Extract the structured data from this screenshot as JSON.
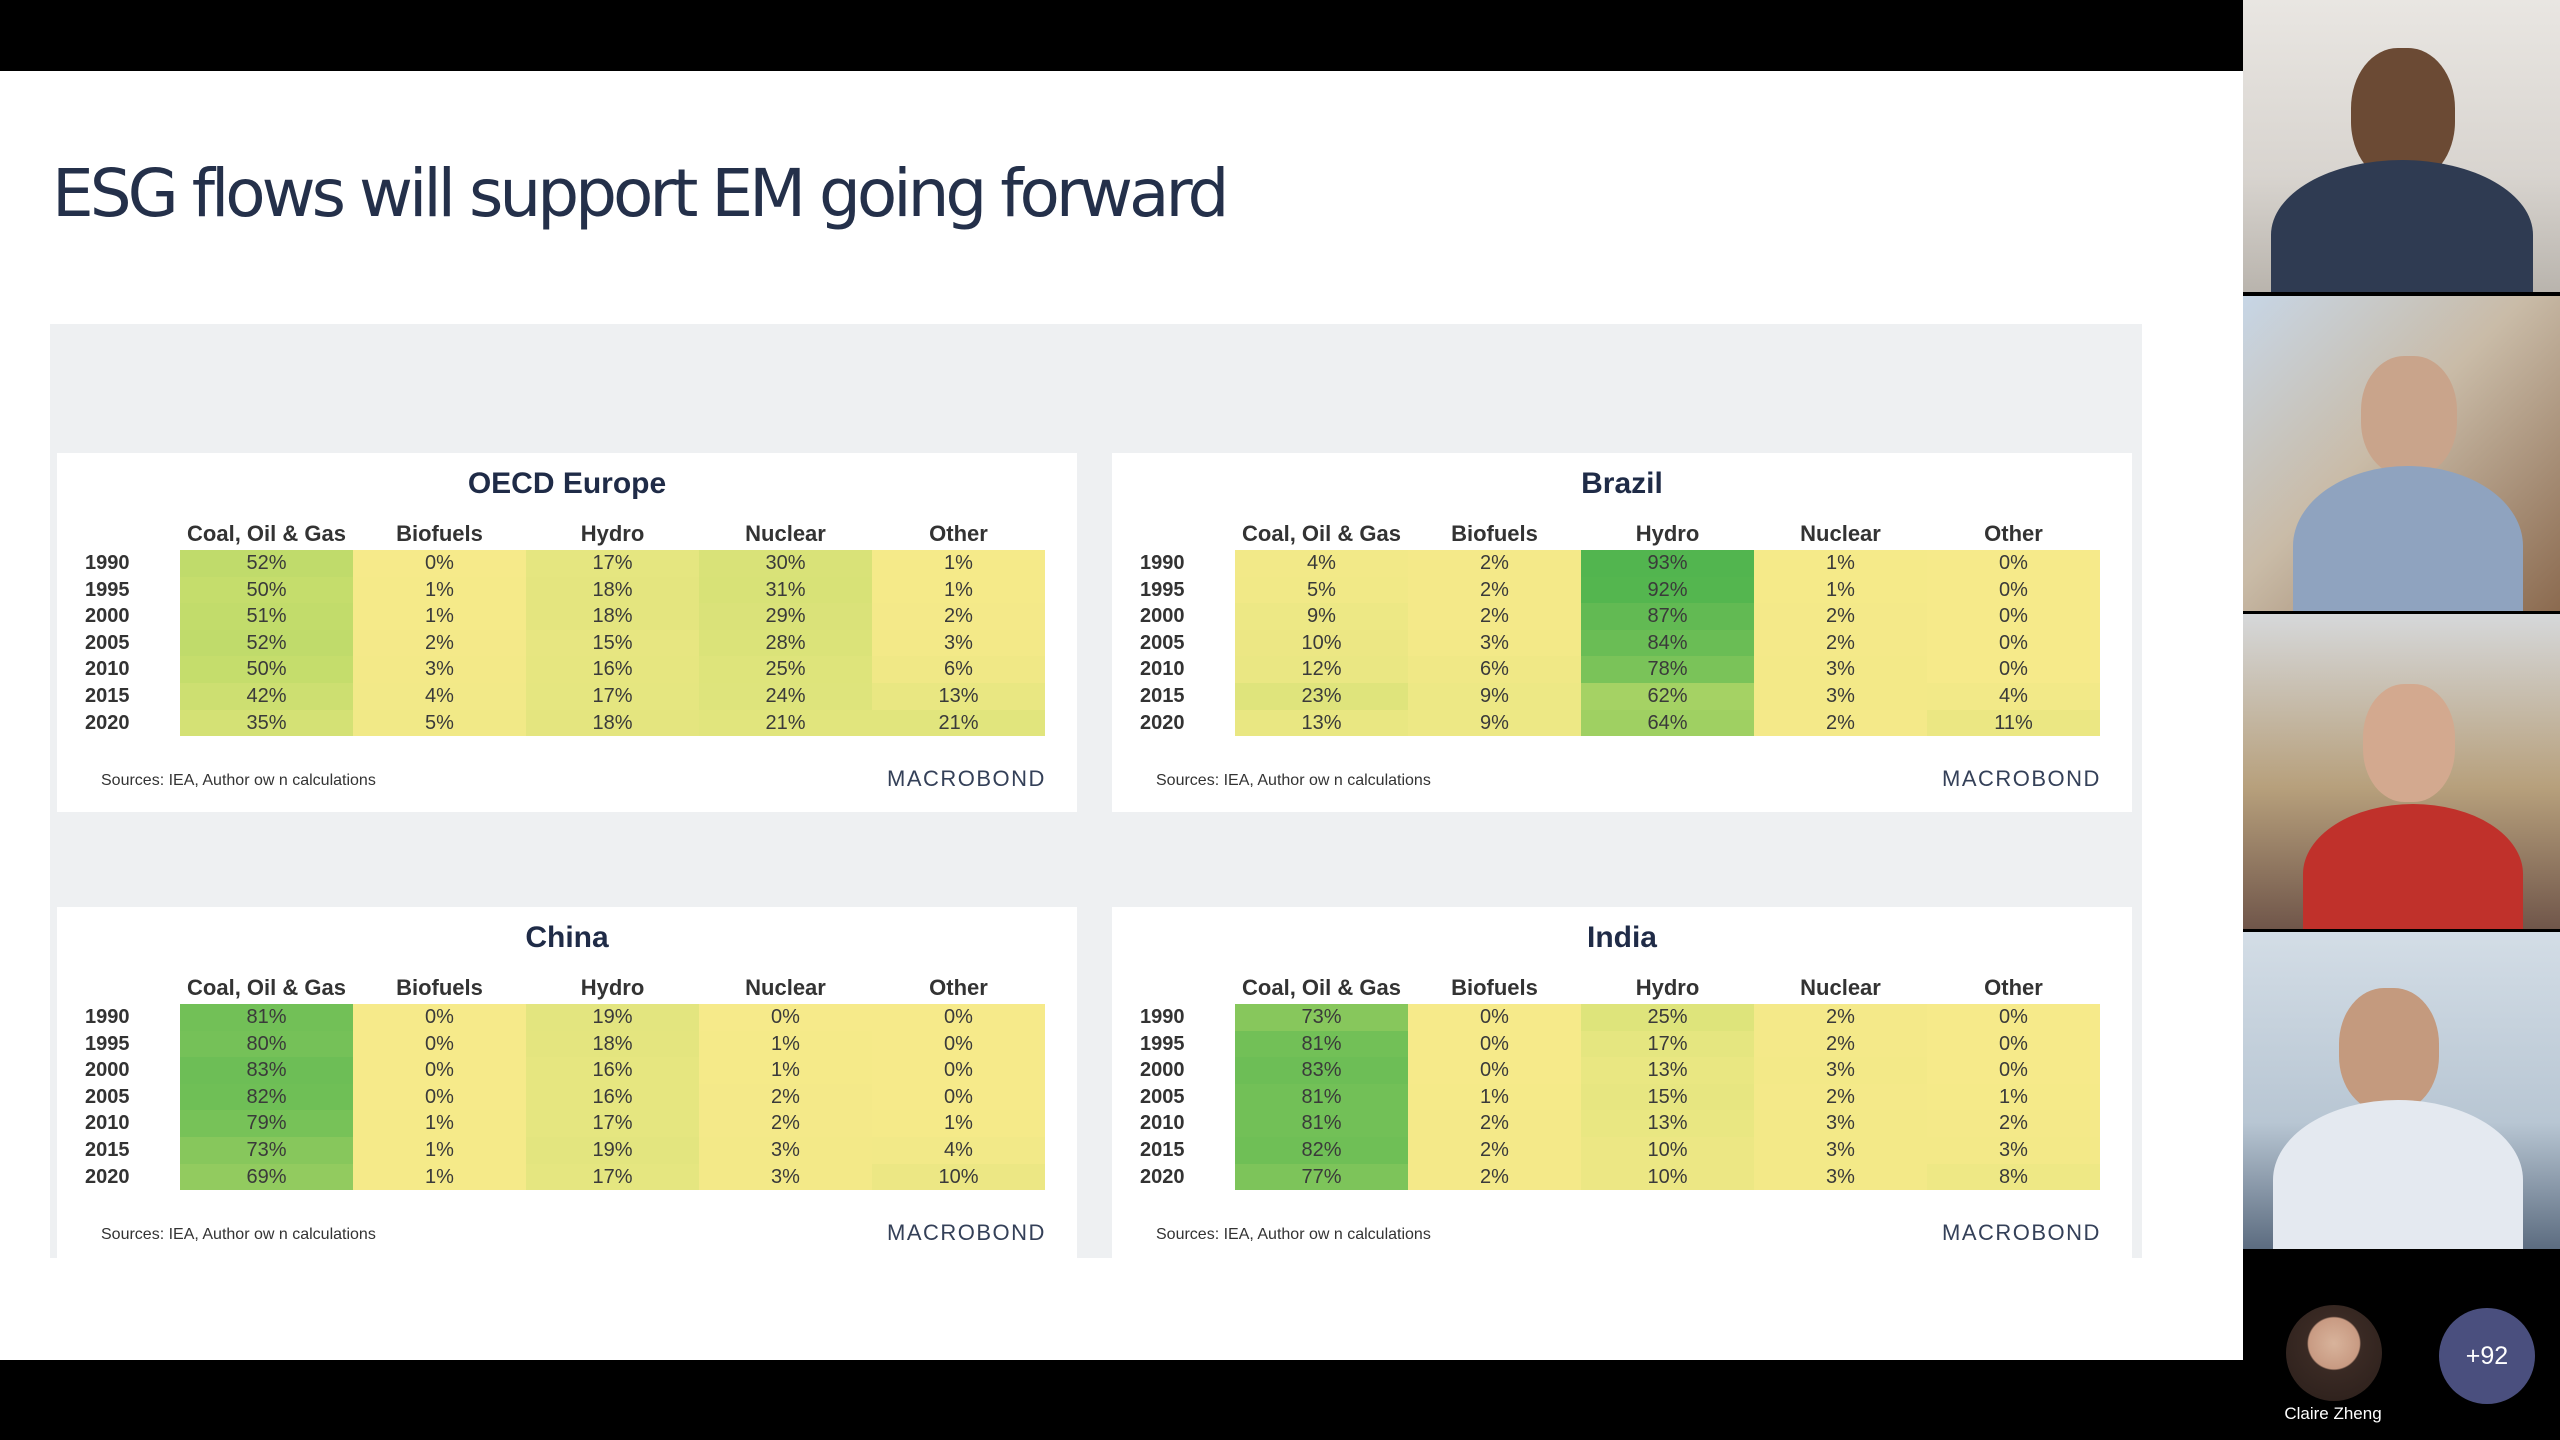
{
  "slide": {
    "title": "ESG flows will support EM going forward"
  },
  "columns": [
    "Coal, Oil & Gas",
    "Biofuels",
    "Hydro",
    "Nuclear",
    "Other"
  ],
  "tables": [
    {
      "title": "OECD Europe",
      "source": "Sources: IEA, Author ow n calculations",
      "brand": "MACROBOND",
      "rows": [
        {
          "year": "1990",
          "values": [
            "52%",
            "0%",
            "17%",
            "30%",
            "1%"
          ]
        },
        {
          "year": "1995",
          "values": [
            "50%",
            "1%",
            "18%",
            "31%",
            "1%"
          ]
        },
        {
          "year": "2000",
          "values": [
            "51%",
            "1%",
            "18%",
            "29%",
            "2%"
          ]
        },
        {
          "year": "2005",
          "values": [
            "52%",
            "2%",
            "15%",
            "28%",
            "3%"
          ]
        },
        {
          "year": "2010",
          "values": [
            "50%",
            "3%",
            "16%",
            "25%",
            "6%"
          ]
        },
        {
          "year": "2015",
          "values": [
            "42%",
            "4%",
            "17%",
            "24%",
            "13%"
          ]
        },
        {
          "year": "2020",
          "values": [
            "35%",
            "5%",
            "18%",
            "21%",
            "21%"
          ]
        }
      ]
    },
    {
      "title": "Brazil",
      "source": "Sources: IEA, Author ow n calculations",
      "brand": "MACROBOND",
      "rows": [
        {
          "year": "1990",
          "values": [
            "4%",
            "2%",
            "93%",
            "1%",
            "0%"
          ]
        },
        {
          "year": "1995",
          "values": [
            "5%",
            "2%",
            "92%",
            "1%",
            "0%"
          ]
        },
        {
          "year": "2000",
          "values": [
            "9%",
            "2%",
            "87%",
            "2%",
            "0%"
          ]
        },
        {
          "year": "2005",
          "values": [
            "10%",
            "3%",
            "84%",
            "2%",
            "0%"
          ]
        },
        {
          "year": "2010",
          "values": [
            "12%",
            "6%",
            "78%",
            "3%",
            "0%"
          ]
        },
        {
          "year": "2015",
          "values": [
            "23%",
            "9%",
            "62%",
            "3%",
            "4%"
          ]
        },
        {
          "year": "2020",
          "values": [
            "13%",
            "9%",
            "64%",
            "2%",
            "11%"
          ]
        }
      ]
    },
    {
      "title": "China",
      "source": "Sources: IEA, Author ow n calculations",
      "brand": "MACROBOND",
      "rows": [
        {
          "year": "1990",
          "values": [
            "81%",
            "0%",
            "19%",
            "0%",
            "0%"
          ]
        },
        {
          "year": "1995",
          "values": [
            "80%",
            "0%",
            "18%",
            "1%",
            "0%"
          ]
        },
        {
          "year": "2000",
          "values": [
            "83%",
            "0%",
            "16%",
            "1%",
            "0%"
          ]
        },
        {
          "year": "2005",
          "values": [
            "82%",
            "0%",
            "16%",
            "2%",
            "0%"
          ]
        },
        {
          "year": "2010",
          "values": [
            "79%",
            "1%",
            "17%",
            "2%",
            "1%"
          ]
        },
        {
          "year": "2015",
          "values": [
            "73%",
            "1%",
            "19%",
            "3%",
            "4%"
          ]
        },
        {
          "year": "2020",
          "values": [
            "69%",
            "1%",
            "17%",
            "3%",
            "10%"
          ]
        }
      ]
    },
    {
      "title": "India",
      "source": "Sources: IEA, Author ow n calculations",
      "brand": "MACROBOND",
      "rows": [
        {
          "year": "1990",
          "values": [
            "73%",
            "0%",
            "25%",
            "2%",
            "0%"
          ]
        },
        {
          "year": "1995",
          "values": [
            "81%",
            "0%",
            "17%",
            "2%",
            "0%"
          ]
        },
        {
          "year": "2000",
          "values": [
            "83%",
            "0%",
            "13%",
            "3%",
            "0%"
          ]
        },
        {
          "year": "2005",
          "values": [
            "81%",
            "1%",
            "15%",
            "2%",
            "1%"
          ]
        },
        {
          "year": "2010",
          "values": [
            "81%",
            "2%",
            "13%",
            "3%",
            "2%"
          ]
        },
        {
          "year": "2015",
          "values": [
            "82%",
            "2%",
            "10%",
            "3%",
            "3%"
          ]
        },
        {
          "year": "2020",
          "values": [
            "77%",
            "2%",
            "10%",
            "3%",
            "8%"
          ]
        }
      ]
    }
  ],
  "heat_colors": {
    "low": "#f6ea8a",
    "mid": "#c5dd6c",
    "high": "#3fae4a"
  },
  "participants": {
    "video_tiles": 4,
    "featured": {
      "name": "Claire Zheng"
    },
    "overflow_count": "+92"
  }
}
